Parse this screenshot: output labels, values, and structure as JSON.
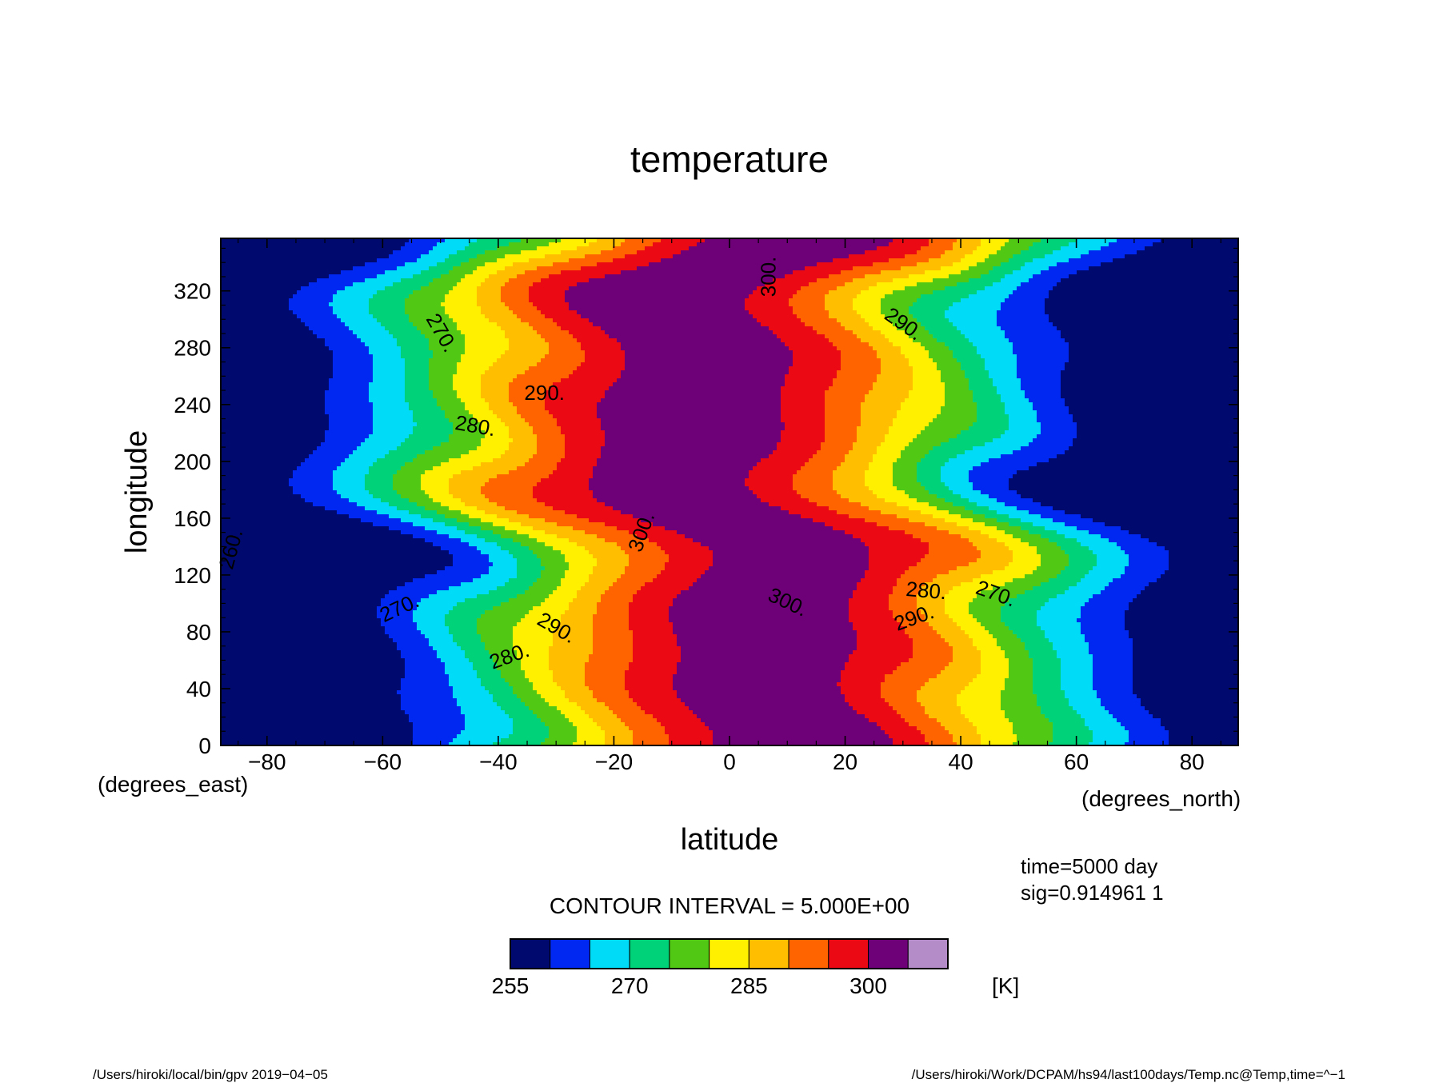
{
  "chart_data": {
    "type": "heatmap",
    "title": "temperature",
    "xlabel": "latitude",
    "ylabel": "longitude",
    "x_units": "(degrees_east)",
    "y_units": "(degrees_north)",
    "xlim": [
      -88,
      88
    ],
    "ylim": [
      0,
      357
    ],
    "x_ticks": [
      -80,
      -60,
      -40,
      -20,
      0,
      20,
      40,
      60,
      80
    ],
    "y_ticks": [
      0,
      40,
      80,
      120,
      160,
      200,
      240,
      280,
      320
    ],
    "x_tick_labels": [
      "−80",
      "−60",
      "−40",
      "−20",
      "0",
      "20",
      "40",
      "60",
      "80"
    ],
    "y_tick_labels": [
      "0",
      "40",
      "80",
      "120",
      "160",
      "200",
      "240",
      "280",
      "320"
    ],
    "contour_interval_text": "CONTOUR INTERVAL = 5.000E+00",
    "time_text": "time=5000 day",
    "sig_text": "sig=0.914961 1",
    "colorbar": {
      "levels": [
        255,
        260,
        265,
        270,
        275,
        280,
        285,
        290,
        295,
        300,
        305
      ],
      "colors": [
        "#000a6e",
        "#0028f0",
        "#00dcf8",
        "#00d27a",
        "#50c814",
        "#fff000",
        "#ffbe00",
        "#ff6400",
        "#eb0a14",
        "#6e0078",
        "#b48cc8"
      ],
      "tick_values": [
        255,
        270,
        285,
        300
      ],
      "tick_labels": [
        "255",
        "270",
        "285",
        "300"
      ],
      "units": "[K]"
    },
    "contour_labels": [
      {
        "text": "270.",
        "lat": -50,
        "lon": 290,
        "angle": 60
      },
      {
        "text": "290.",
        "lat": -32,
        "lon": 247,
        "angle": 0
      },
      {
        "text": "280.",
        "lat": -44,
        "lon": 224,
        "angle": 10
      },
      {
        "text": "260.",
        "lat": -86,
        "lon": 138,
        "angle": -75
      },
      {
        "text": "270.",
        "lat": -57,
        "lon": 96,
        "angle": -25
      },
      {
        "text": "290.",
        "lat": -30,
        "lon": 82,
        "angle": 30
      },
      {
        "text": "280.",
        "lat": -38,
        "lon": 62,
        "angle": -20
      },
      {
        "text": "300.",
        "lat": -15,
        "lon": 150,
        "angle": -70
      },
      {
        "text": "300.",
        "lat": 7,
        "lon": 330,
        "angle": -90
      },
      {
        "text": "290.",
        "lat": 30,
        "lon": 296,
        "angle": 35
      },
      {
        "text": "300.",
        "lat": 10,
        "lon": 100,
        "angle": 25
      },
      {
        "text": "280.",
        "lat": 34,
        "lon": 108,
        "angle": 5
      },
      {
        "text": "270.",
        "lat": 46,
        "lon": 106,
        "angle": 20
      },
      {
        "text": "290.",
        "lat": 32,
        "lon": 89,
        "angle": -20
      }
    ]
  },
  "footer": {
    "left": "/Users/hiroki/local/bin/gpv  2019−04−05",
    "right": "/Users/hiroki/Work/DCPAM/hs94/last100days/Temp.nc@Temp,time=^−1"
  }
}
